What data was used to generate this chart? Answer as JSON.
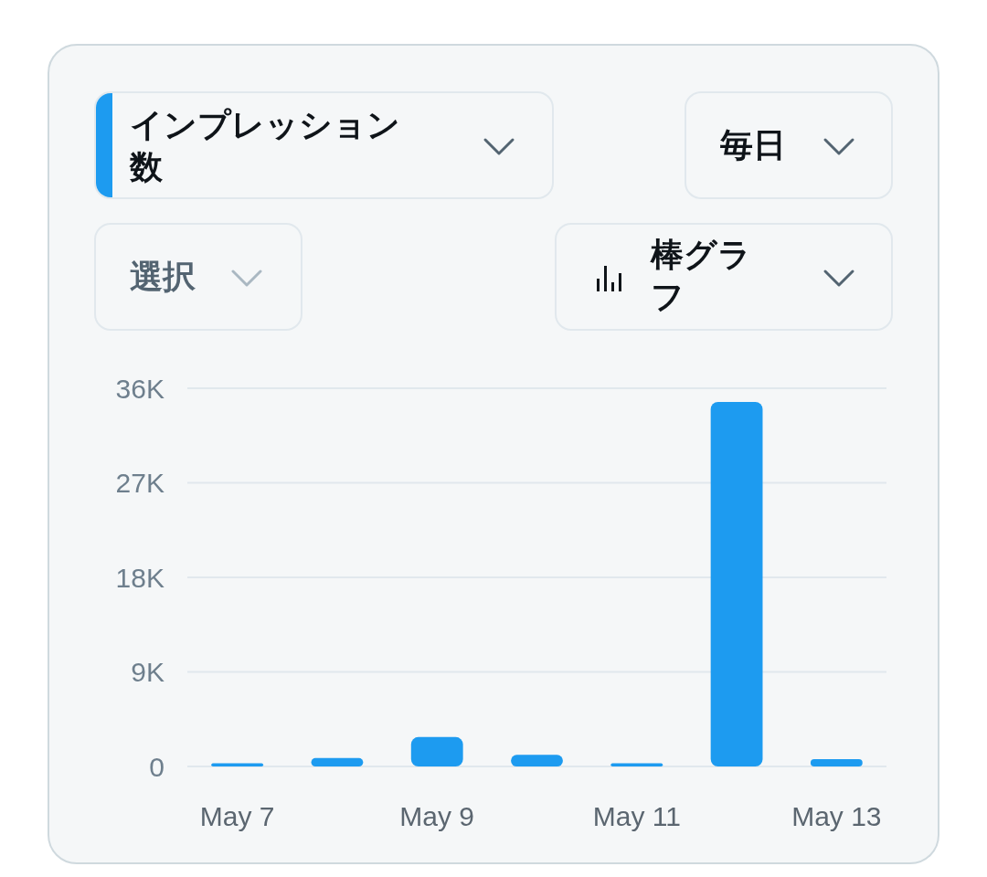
{
  "chart_data": {
    "type": "bar",
    "title": "インプレッション数",
    "annotations": [
      "毎日",
      "選択",
      "棒グラフ"
    ],
    "categories": [
      "May 7",
      null,
      "May 9",
      null,
      "May 11",
      null,
      "May 13"
    ],
    "values": [
      300,
      800,
      2800,
      1100,
      300,
      34700,
      700
    ],
    "color": "#1d9bf0",
    "ylim": [
      0,
      36000
    ],
    "yticks": [
      {
        "value": 0,
        "label": "0"
      },
      {
        "value": 9000,
        "label": "9K"
      },
      {
        "value": 18000,
        "label": "18K"
      },
      {
        "value": 27000,
        "label": "27K"
      },
      {
        "value": 36000,
        "label": "36K"
      }
    ],
    "grid": "y"
  }
}
